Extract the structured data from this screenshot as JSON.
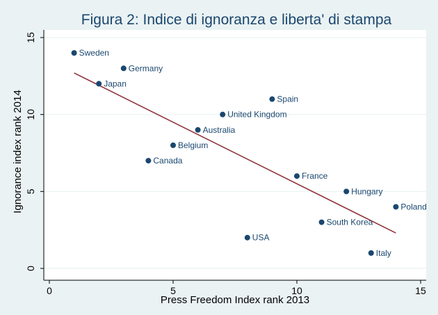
{
  "chart_data": {
    "type": "scatter",
    "title": "Figura 2: Indice di ignoranza e liberta' di stampa",
    "xlabel": "Press Freedom Index rank 2013",
    "ylabel": "Ignorance index rank 2014",
    "xlim": [
      0,
      15
    ],
    "ylim": [
      0,
      15
    ],
    "xticks": [
      0,
      5,
      10,
      15
    ],
    "yticks": [
      0,
      5,
      10,
      15
    ],
    "grid": true,
    "points": [
      {
        "label": "Sweden",
        "x": 1,
        "y": 14
      },
      {
        "label": "Germany",
        "x": 3,
        "y": 13
      },
      {
        "label": "Japan",
        "x": 2,
        "y": 12
      },
      {
        "label": "Spain",
        "x": 9,
        "y": 11
      },
      {
        "label": "United Kingdom",
        "x": 7,
        "y": 10
      },
      {
        "label": "Australia",
        "x": 6,
        "y": 9
      },
      {
        "label": "Belgium",
        "x": 5,
        "y": 8
      },
      {
        "label": "Canada",
        "x": 4,
        "y": 7
      },
      {
        "label": "France",
        "x": 10,
        "y": 6
      },
      {
        "label": "Hungary",
        "x": 12,
        "y": 5
      },
      {
        "label": "Poland",
        "x": 14,
        "y": 4
      },
      {
        "label": "South Korea",
        "x": 11,
        "y": 3
      },
      {
        "label": "USA",
        "x": 8,
        "y": 2
      },
      {
        "label": "Italy",
        "x": 13,
        "y": 1
      }
    ],
    "fit_line": {
      "x": [
        1,
        14
      ],
      "y": [
        12.7,
        2.3
      ]
    },
    "colors": {
      "background": "#eaf2f3",
      "plot_background": "#ffffff",
      "marker": "#1a476f",
      "fit_line": "#90353b",
      "grid": "#eaf2f3"
    }
  }
}
